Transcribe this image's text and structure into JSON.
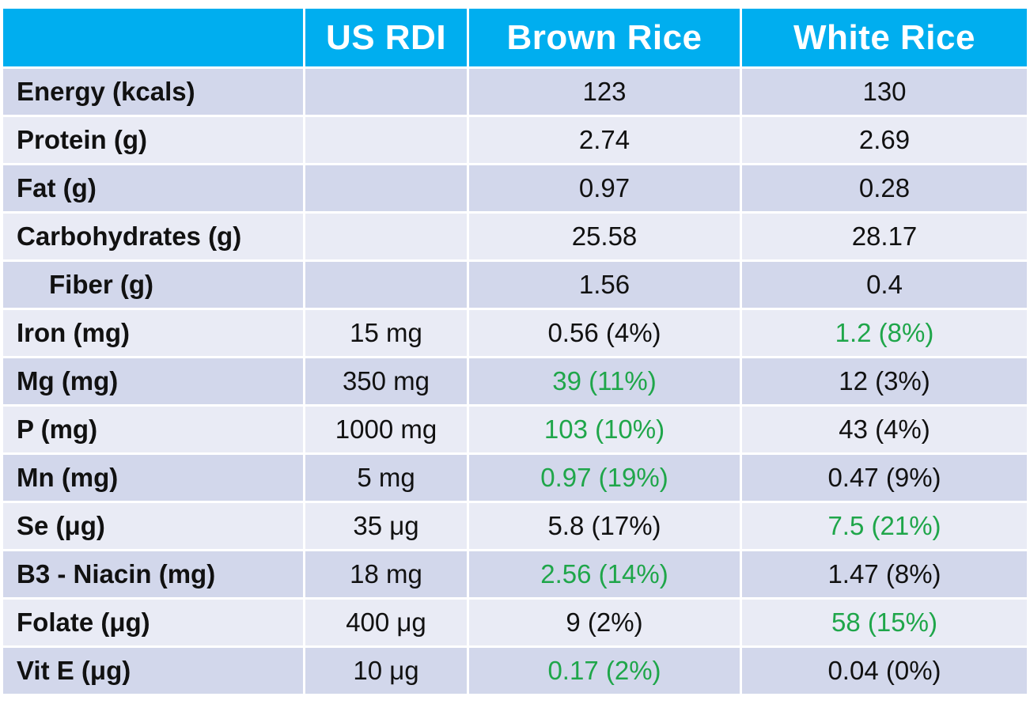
{
  "header": {
    "corner": "",
    "col_rdi": "US RDI",
    "col_brown": "Brown Rice",
    "col_white": "White Rice"
  },
  "colors": {
    "header_bg": "#00aeef",
    "row_dark": "#d2d7eb",
    "row_light": "#e9ebf5",
    "highlight_green": "#1fa64a"
  },
  "rows": [
    {
      "label": "Energy (kcals)",
      "rdi": "",
      "brown": "123",
      "white": "130",
      "better": "none"
    },
    {
      "label": "Protein (g)",
      "rdi": "",
      "brown": "2.74",
      "white": "2.69",
      "better": "none"
    },
    {
      "label": "Fat (g)",
      "rdi": "",
      "brown": "0.97",
      "white": "0.28",
      "better": "none"
    },
    {
      "label": "Carbohydrates (g)",
      "rdi": "",
      "brown": "25.58",
      "white": "28.17",
      "better": "none"
    },
    {
      "label": "Fiber (g)",
      "rdi": "",
      "brown": "1.56",
      "white": "0.4",
      "better": "none"
    },
    {
      "label": "Iron (mg)",
      "rdi": "15 mg",
      "brown": "0.56 (4%)",
      "white": "1.2 (8%)",
      "better": "white"
    },
    {
      "label": "Mg (mg)",
      "rdi": "350 mg",
      "brown": "39 (11%)",
      "white": "12 (3%)",
      "better": "brown"
    },
    {
      "label": "P (mg)",
      "rdi": "1000 mg",
      "brown": "103 (10%)",
      "white": "43 (4%)",
      "better": "brown"
    },
    {
      "label": "Mn (mg)",
      "rdi": "5 mg",
      "brown": "0.97 (19%)",
      "white": "0.47 (9%)",
      "better": "brown"
    },
    {
      "label": "Se (μg)",
      "rdi": "35 μg",
      "brown": "5.8 (17%)",
      "white": "7.5 (21%)",
      "better": "white"
    },
    {
      "label": "B3 - Niacin (mg)",
      "rdi": "18 mg",
      "brown": "2.56 (14%)",
      "white": "1.47 (8%)",
      "better": "brown"
    },
    {
      "label": "Folate (μg)",
      "rdi": "400 μg",
      "brown": "9 (2%)",
      "white": "58 (15%)",
      "better": "white"
    },
    {
      "label": "Vit E (μg)",
      "rdi": "10 μg",
      "brown": "0.17 (2%)",
      "white": "0.04 (0%)",
      "better": "brown"
    }
  ]
}
